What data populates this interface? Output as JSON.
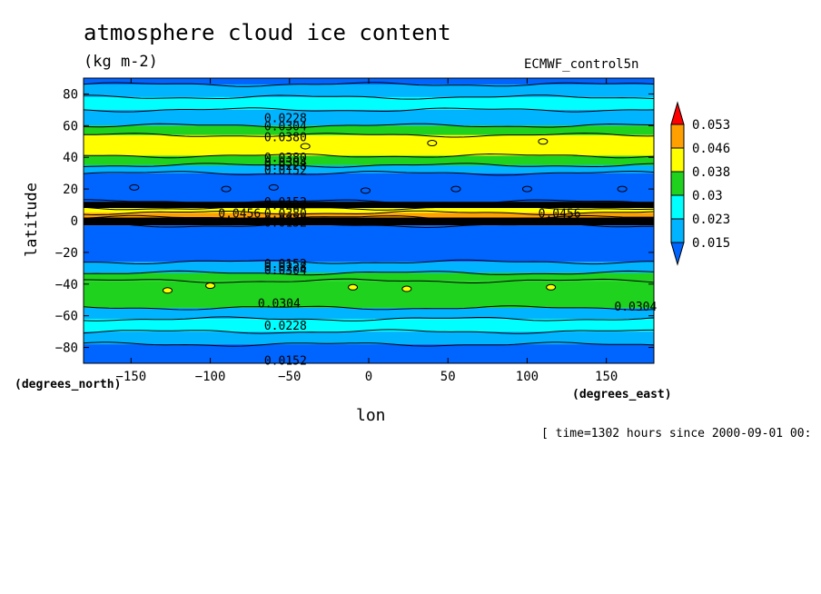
{
  "title": "atmosphere cloud ice content",
  "units": "(kg m-2)",
  "dataset": "ECMWF_control5n",
  "footer": "[ time=1302 hours since 2000-09-01 00:",
  "colors": {
    "c1": "#0064ff",
    "c2": "#00b4ff",
    "c3": "#00ffff",
    "c4": "#1ed21e",
    "c5": "#ffff00",
    "c6": "#ffa000",
    "c7": "#ff0000"
  },
  "chart_data": {
    "type": "heatmap",
    "title": "atmosphere cloud ice content",
    "xlabel": "lon",
    "ylabel": "latitude",
    "x_unit_label": "(degrees_east)",
    "y_unit_label": "(degrees_north)",
    "xlim": [
      -180,
      180
    ],
    "ylim": [
      -90,
      90
    ],
    "x_ticks": [
      -150,
      -100,
      -50,
      0,
      50,
      100,
      150
    ],
    "y_ticks": [
      -80,
      -60,
      -40,
      -20,
      0,
      20,
      40,
      60,
      80
    ],
    "x_tick_labels": [
      "−150",
      "−100",
      "−50",
      "0",
      "50",
      "100",
      "150"
    ],
    "y_tick_labels": [
      "−80",
      "−60",
      "−40",
      "−20",
      "0",
      "20",
      "40",
      "60",
      "80"
    ],
    "colorbar_levels": [
      "0.015",
      "0.023",
      "0.03",
      "0.038",
      "0.046",
      "0.053"
    ],
    "bands": [
      {
        "lat_from": 90,
        "lat_to": 86,
        "color": "#0064ff"
      },
      {
        "lat_from": 86,
        "lat_to": 78,
        "color": "#00b4ff"
      },
      {
        "lat_from": 78,
        "lat_to": 70,
        "color": "#00ffff"
      },
      {
        "lat_from": 70,
        "lat_to": 60,
        "color": "#00b4ff"
      },
      {
        "lat_from": 60,
        "lat_to": 54,
        "color": "#1ed21e"
      },
      {
        "lat_from": 54,
        "lat_to": 41,
        "color": "#ffff00"
      },
      {
        "lat_from": 41,
        "lat_to": 35,
        "color": "#1ed21e"
      },
      {
        "lat_from": 35,
        "lat_to": 30,
        "color": "#00b4ff"
      },
      {
        "lat_from": 30,
        "lat_to": 12,
        "color": "#0064ff"
      },
      {
        "lat_from": 12,
        "lat_to": 8,
        "color": "#000000"
      },
      {
        "lat_from": 8,
        "lat_to": 5,
        "color": "#ffff00"
      },
      {
        "lat_from": 5,
        "lat_to": 2,
        "color": "#ffa000"
      },
      {
        "lat_from": 2,
        "lat_to": -3,
        "color": "#000000"
      },
      {
        "lat_from": -3,
        "lat_to": -26,
        "color": "#0064ff"
      },
      {
        "lat_from": -26,
        "lat_to": -33,
        "color": "#00b4ff"
      },
      {
        "lat_from": -33,
        "lat_to": -38,
        "color": "#1ed21e"
      },
      {
        "lat_from": -38,
        "lat_to": -55,
        "color": "#1ed21e"
      },
      {
        "lat_from": -55,
        "lat_to": -62,
        "color": "#00b4ff"
      },
      {
        "lat_from": -62,
        "lat_to": -70,
        "color": "#00ffff"
      },
      {
        "lat_from": -70,
        "lat_to": -78,
        "color": "#00b4ff"
      },
      {
        "lat_from": -78,
        "lat_to": -90,
        "color": "#0064ff"
      }
    ],
    "contour_labels": [
      {
        "text": "0.0228",
        "lon": -66,
        "lat": 65
      },
      {
        "text": "0.0304",
        "lon": -66,
        "lat": 60
      },
      {
        "text": "0.0380",
        "lon": -66,
        "lat": 53
      },
      {
        "text": "0.0380",
        "lon": -66,
        "lat": 40
      },
      {
        "text": "0.0304",
        "lon": -66,
        "lat": 37
      },
      {
        "text": "0.0228",
        "lon": -66,
        "lat": 35
      },
      {
        "text": "0.0152",
        "lon": -66,
        "lat": 32
      },
      {
        "text": "0.0152",
        "lon": -66,
        "lat": 12
      },
      {
        "text": "0.0228",
        "lon": -66,
        "lat": 10
      },
      {
        "text": "0.0456",
        "lon": -95,
        "lat": 5
      },
      {
        "text": "0.0380",
        "lon": -66,
        "lat": 5
      },
      {
        "text": "0.0228",
        "lon": -66,
        "lat": 1
      },
      {
        "text": "0.0152",
        "lon": -66,
        "lat": -1
      },
      {
        "text": "0.0456",
        "lon": 107,
        "lat": 5
      },
      {
        "text": "0.0152",
        "lon": -66,
        "lat": -27
      },
      {
        "text": "0.0228",
        "lon": -66,
        "lat": -29
      },
      {
        "text": "0.0304",
        "lon": -66,
        "lat": -31
      },
      {
        "text": "0.0304",
        "lon": -70,
        "lat": -52
      },
      {
        "text": "0.0304",
        "lon": 155,
        "lat": -54
      },
      {
        "text": "0.0228",
        "lon": -66,
        "lat": -66
      },
      {
        "text": "0.0152",
        "lon": -66,
        "lat": -88
      }
    ]
  }
}
